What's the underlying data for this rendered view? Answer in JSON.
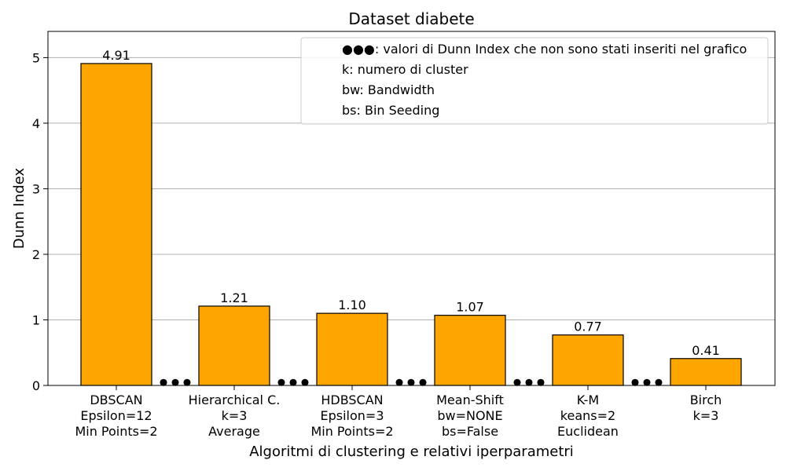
{
  "chart_data": {
    "type": "bar",
    "title": "Dataset diabete",
    "xlabel": "Algoritmi di clustering e relativi iperparametri",
    "ylabel": "Dunn Index",
    "ylim": [
      0,
      5.4
    ],
    "yticks": [
      0,
      1,
      2,
      3,
      4,
      5
    ],
    "grid": "y",
    "legend_position": "top-right",
    "colors": {
      "bar": "#ffa500",
      "bar_edge": "#000000",
      "grid": "#b0b0b0",
      "dots": "#000000"
    },
    "categories": [
      [
        "DBSCAN",
        "Epsilon=12",
        "Min Points=2"
      ],
      [
        "Hierarchical C.",
        "k=3",
        "Average"
      ],
      [
        "HDBSCAN",
        "Epsilon=3",
        "Min Points=2"
      ],
      [
        "Mean-Shift",
        "bw=NONE",
        "bs=False"
      ],
      [
        "K-M",
        "keans=2",
        "Euclidean"
      ],
      [
        "Birch",
        "k=3"
      ]
    ],
    "values": [
      4.91,
      1.21,
      1.1,
      1.07,
      0.77,
      0.41
    ],
    "value_labels": [
      "4.91",
      "1.21",
      "1.10",
      "1.07",
      "0.77",
      "0.41"
    ],
    "legend": [
      "●●●: valori di Dunn Index che non sono stati inseriti nel grafico",
      "k: numero di cluster",
      "bw: Bandwidth",
      "bs: Bin Seeding"
    ]
  }
}
